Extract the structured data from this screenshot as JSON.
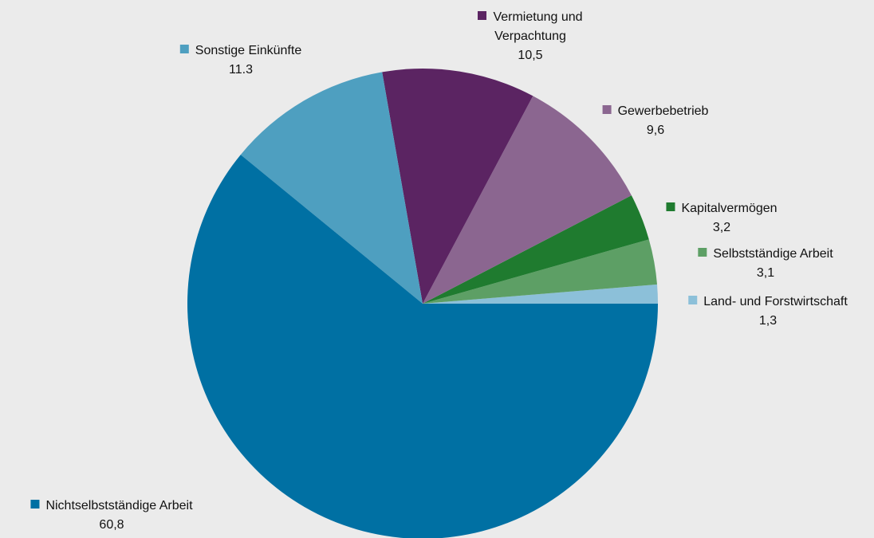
{
  "chart_data": {
    "type": "pie",
    "categories": [
      "Land- und Forstwirtschaft",
      "Selbstständige Arbeit",
      "Kapitalvermögen",
      "Gewerbebetrieb",
      "Vermietung und Verpachtung",
      "Sonstige Einkünfte",
      "Nichtselbstständige Arbeit"
    ],
    "values": [
      1.3,
      3.1,
      3.2,
      9.6,
      10.5,
      11.3,
      60.8
    ],
    "value_labels": [
      "1,3",
      "3,1",
      "3,2",
      "9,6",
      "10,5",
      "11.3",
      "60,8"
    ],
    "colors": [
      "#8cc0d9",
      "#5d9f65",
      "#1f7b2f",
      "#8b6690",
      "#5b2462",
      "#4e9fc0",
      "#0070a3"
    ]
  }
}
